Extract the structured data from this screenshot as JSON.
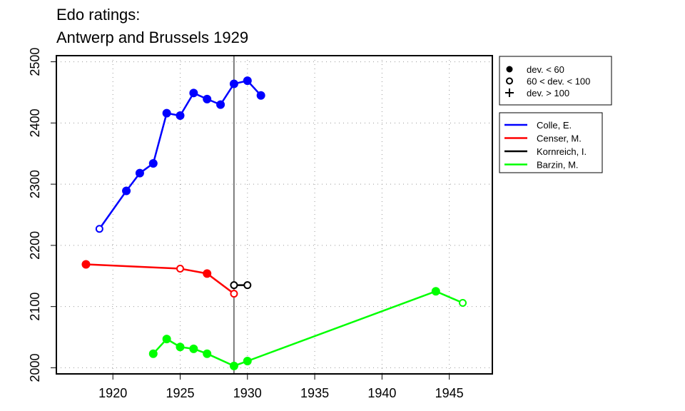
{
  "title_lines": [
    "Edo ratings:",
    "Antwerp and Brussels 1929"
  ],
  "chart_data": {
    "type": "line",
    "title": "Edo ratings: Antwerp and Brussels 1929",
    "xlim": [
      1915.8,
      1948.2
    ],
    "ylim": [
      1990,
      2510
    ],
    "x_ticks": [
      1920,
      1925,
      1930,
      1935,
      1940,
      1945
    ],
    "y_ticks": [
      2000,
      2100,
      2200,
      2300,
      2400,
      2500
    ],
    "grid": "dotted",
    "reference_line_x": 1929,
    "marker_legend": [
      {
        "marker": "filled",
        "label": "dev. < 60"
      },
      {
        "marker": "open",
        "label": "60 < dev. < 100"
      },
      {
        "marker": "plus",
        "label": "dev. > 100"
      }
    ],
    "series": [
      {
        "name": "Colle, E.",
        "color": "#0000ff",
        "points": [
          [
            1919,
            2227,
            "open"
          ],
          [
            1921,
            2289,
            "filled"
          ],
          [
            1922,
            2318,
            "filled"
          ],
          [
            1923,
            2334,
            "filled"
          ],
          [
            1924,
            2416,
            "filled"
          ],
          [
            1925,
            2412,
            "filled"
          ],
          [
            1926,
            2449,
            "filled"
          ],
          [
            1927,
            2439,
            "filled"
          ],
          [
            1928,
            2430,
            "filled"
          ],
          [
            1929,
            2464,
            "filled"
          ],
          [
            1930,
            2469,
            "filled"
          ],
          [
            1931,
            2445,
            "filled"
          ]
        ]
      },
      {
        "name": "Censer, M.",
        "color": "#ff0000",
        "points": [
          [
            1918,
            2169,
            "filled"
          ],
          [
            1925,
            2162,
            "open"
          ],
          [
            1927,
            2154,
            "filled"
          ],
          [
            1929,
            2121,
            "open"
          ]
        ]
      },
      {
        "name": "Kornreich, I.",
        "color": "#000000",
        "points": [
          [
            1929,
            2135,
            "open"
          ],
          [
            1930,
            2135,
            "open"
          ]
        ]
      },
      {
        "name": "Barzin, M.",
        "color": "#00ff00",
        "points": [
          [
            1923,
            2023,
            "filled"
          ],
          [
            1924,
            2047,
            "filled"
          ],
          [
            1925,
            2034,
            "filled"
          ],
          [
            1926,
            2031,
            "filled"
          ],
          [
            1927,
            2023,
            "filled"
          ],
          [
            1929,
            2003,
            "filled"
          ],
          [
            1930,
            2011,
            "filled"
          ],
          [
            1944,
            2125,
            "filled"
          ],
          [
            1946,
            2106,
            "open"
          ]
        ]
      }
    ]
  }
}
